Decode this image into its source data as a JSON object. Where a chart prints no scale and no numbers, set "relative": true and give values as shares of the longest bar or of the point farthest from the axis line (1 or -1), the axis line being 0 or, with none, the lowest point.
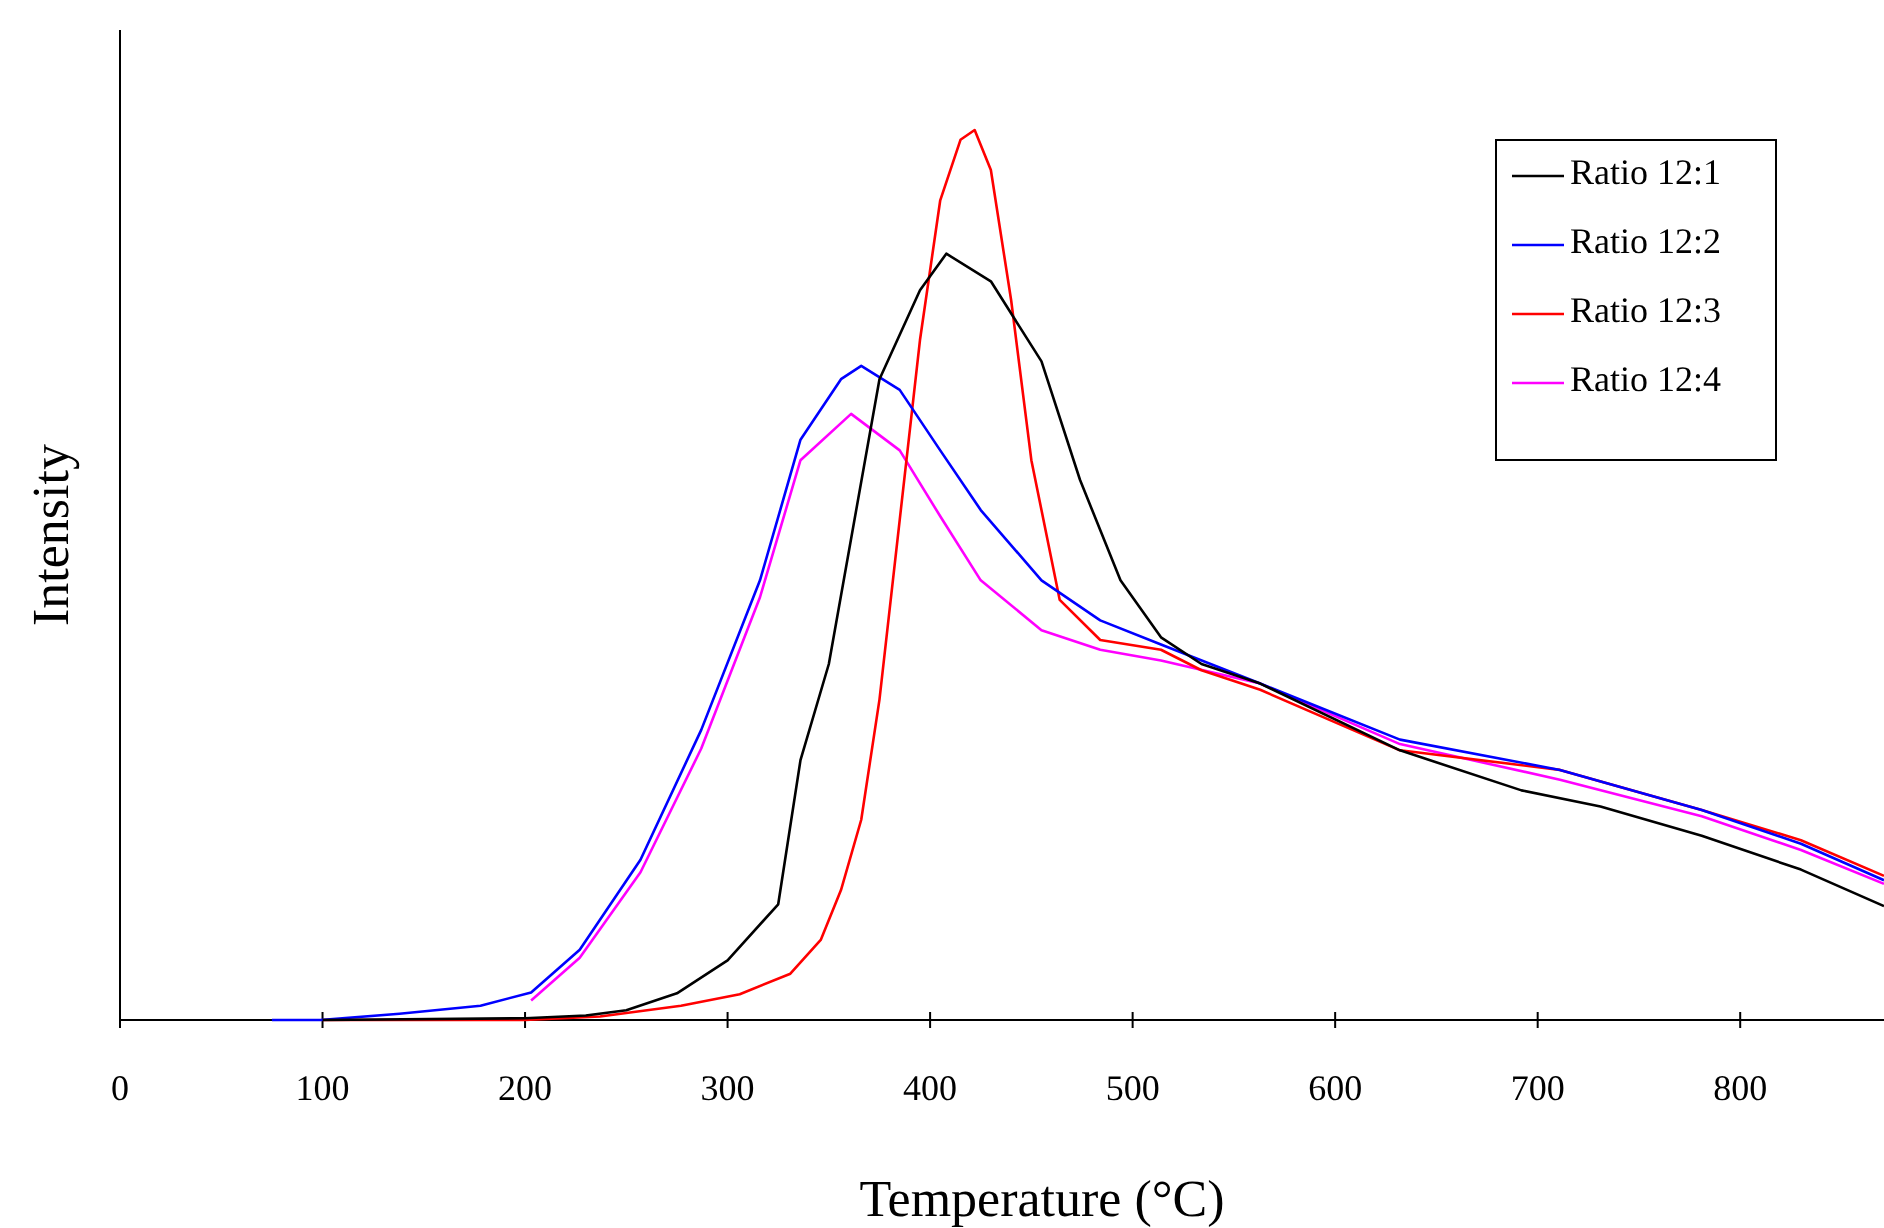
{
  "chart_data": {
    "type": "line",
    "xlabel": "Temperature (°C)",
    "ylabel": "Intensity",
    "relative": true,
    "xlim": [
      0,
      871
    ],
    "xticks": [
      0,
      100,
      200,
      300,
      400,
      500,
      600,
      700,
      800
    ],
    "legend": "top right",
    "grid": false,
    "marker": "none",
    "line_style": "solid",
    "series": [
      {
        "name": "Ratio 12:1",
        "color": "#000000",
        "x": [
          100,
          200,
          230,
          250,
          275,
          300,
          325,
          336,
          350,
          375,
          395,
          408,
          430,
          455,
          474,
          494,
          514,
          534,
          563,
          632,
          692,
          731,
          781,
          830,
          871
        ],
        "values": [
          0,
          0.002,
          0.005,
          0.011,
          0.03,
          0.067,
          0.13,
          0.292,
          0.4,
          0.72,
          0.82,
          0.861,
          0.83,
          0.74,
          0.607,
          0.494,
          0.43,
          0.4,
          0.378,
          0.303,
          0.258,
          0.24,
          0.207,
          0.169,
          0.128
        ]
      },
      {
        "name": "Ratio 12:2",
        "color": "#0000ff",
        "x": [
          75,
          99,
          138,
          178,
          203,
          227,
          257,
          287,
          316,
          336,
          356,
          366,
          385,
          405,
          425,
          455,
          484,
          514,
          563,
          632,
          711,
          781,
          830,
          871
        ],
        "values": [
          0,
          0,
          0.007,
          0.016,
          0.031,
          0.079,
          0.18,
          0.326,
          0.494,
          0.652,
          0.72,
          0.735,
          0.708,
          0.64,
          0.573,
          0.494,
          0.449,
          0.422,
          0.378,
          0.315,
          0.281,
          0.236,
          0.198,
          0.157
        ]
      },
      {
        "name": "Ratio 12:3",
        "color": "#ff0000",
        "x": [
          100,
          200,
          237,
          277,
          306,
          331,
          346,
          356,
          366,
          375,
          385,
          395,
          405,
          415,
          422,
          430,
          440,
          450,
          464,
          484,
          514,
          534,
          563,
          632,
          711,
          781,
          830,
          871
        ],
        "values": [
          0,
          0,
          0.004,
          0.016,
          0.029,
          0.052,
          0.09,
          0.146,
          0.225,
          0.36,
          0.562,
          0.764,
          0.921,
          0.989,
          1,
          0.955,
          0.809,
          0.629,
          0.472,
          0.427,
          0.416,
          0.393,
          0.371,
          0.303,
          0.281,
          0.236,
          0.202,
          0.162
        ]
      },
      {
        "name": "Ratio 12:4",
        "color": "#ff00ff",
        "x": [
          203,
          227,
          257,
          287,
          316,
          336,
          361,
          385,
          405,
          425,
          455,
          484,
          514,
          563,
          632,
          711,
          781,
          830,
          871
        ],
        "values": [
          0.022,
          0.07,
          0.166,
          0.305,
          0.475,
          0.629,
          0.681,
          0.64,
          0.566,
          0.494,
          0.438,
          0.416,
          0.404,
          0.378,
          0.31,
          0.27,
          0.229,
          0.191,
          0.153
        ]
      }
    ]
  }
}
